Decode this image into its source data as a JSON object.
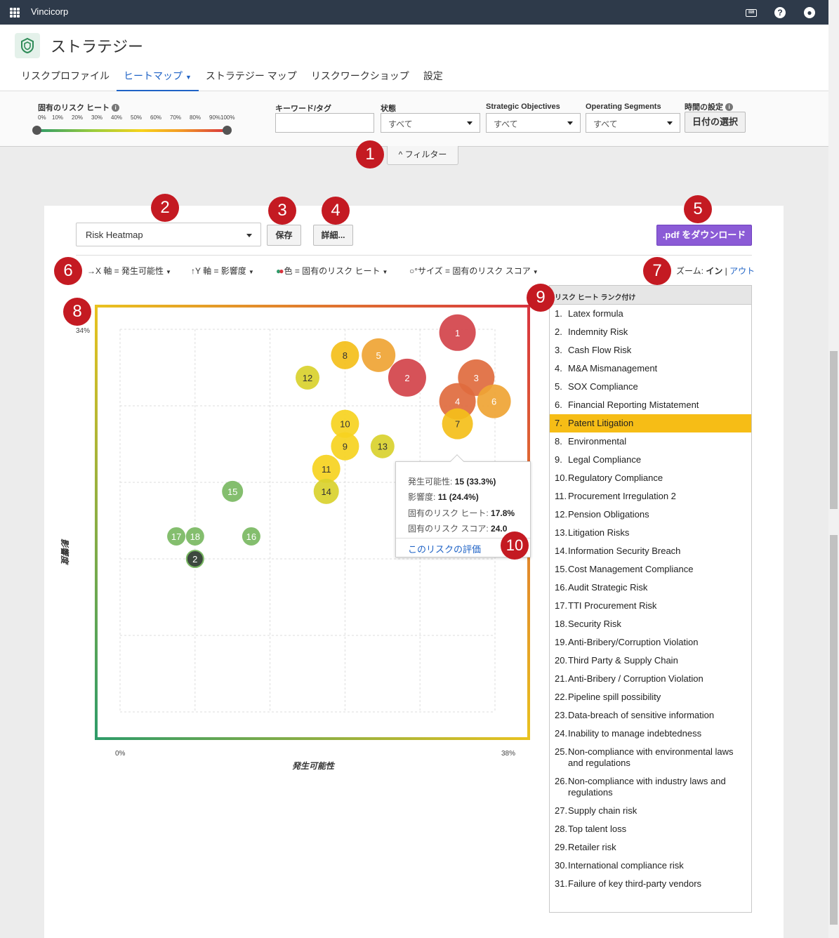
{
  "topbar": {
    "brand": "Vincicorp"
  },
  "header": {
    "title": "ストラテジー",
    "tabs": [
      {
        "label": "リスクプロファイル"
      },
      {
        "label": "ヒートマップ"
      },
      {
        "label": "ストラテジー マップ"
      },
      {
        "label": "リスクワークショップ"
      },
      {
        "label": "設定"
      }
    ]
  },
  "filters": {
    "inherent_heat_label": "固有のリスク ヒート",
    "ticks": [
      "0%",
      "10%",
      "20%",
      "30%",
      "40%",
      "50%",
      "60%",
      "70%",
      "80%",
      "90%",
      "100%"
    ],
    "keyword_label": "キーワード/タグ",
    "status_label": "状態",
    "status_value": "すべて",
    "strategic_label": "Strategic Objectives",
    "strategic_value": "すべて",
    "segments_label": "Operating Segments",
    "segments_value": "すべて",
    "time_label": "時間の設定",
    "date_button": "日付の選択",
    "toggle_label": "^ フィルター"
  },
  "toolbar": {
    "heatmap_select": "Risk Heatmap",
    "save": "保存",
    "details": "詳細...",
    "pdf": ".pdf をダウンロード",
    "x_axis": "X 軸 = 発生可能性",
    "y_axis": "Y 軸 = 影響度",
    "color": "色 = 固有のリスク ヒート",
    "size": "サイズ = 固有のリスク スコア",
    "zoom_label": "ズーム:",
    "zoom_in": "イン",
    "zoom_sep": " | ",
    "zoom_out": "アウト"
  },
  "badges": [
    "1",
    "2",
    "3",
    "4",
    "5",
    "6",
    "7",
    "8",
    "9",
    "10"
  ],
  "chart_data": {
    "type": "scatter",
    "xlabel": "発生可能性",
    "ylabel": "影響度",
    "x_min_label": "0%",
    "x_max_label": "38%",
    "y_max_label": "34%",
    "xlim": [
      0,
      38
    ],
    "ylim": [
      0,
      34
    ],
    "grid": true,
    "points": [
      {
        "label": "1",
        "x": 34.2,
        "y": 33.7,
        "r": 26,
        "color": "#d3434a"
      },
      {
        "label": "2",
        "x": 29.1,
        "y": 29.7,
        "r": 27,
        "color": "#d3434a"
      },
      {
        "label": "3",
        "x": 36.1,
        "y": 29.7,
        "r": 26,
        "color": "#e06b3e"
      },
      {
        "label": "4",
        "x": 34.2,
        "y": 27.6,
        "r": 26,
        "color": "#e06b3e"
      },
      {
        "label": "5",
        "x": 26.2,
        "y": 31.7,
        "r": 24,
        "color": "#efa434"
      },
      {
        "label": "6",
        "x": 37.9,
        "y": 27.6,
        "r": 24,
        "color": "#efa434"
      },
      {
        "label": "7",
        "x": 34.2,
        "y": 25.6,
        "r": 22,
        "color": "#f4bf1a"
      },
      {
        "label": "8",
        "x": 22.8,
        "y": 31.7,
        "r": 20,
        "color": "#f4bf1a"
      },
      {
        "label": "9",
        "x": 22.8,
        "y": 23.6,
        "r": 20,
        "color": "#f6d31f"
      },
      {
        "label": "10",
        "x": 22.8,
        "y": 25.6,
        "r": 20,
        "color": "#f6d31f"
      },
      {
        "label": "11",
        "x": 20.9,
        "y": 21.6,
        "r": 20,
        "color": "#f6d31f"
      },
      {
        "label": "12",
        "x": 19.0,
        "y": 29.7,
        "r": 17,
        "color": "#d9d12e"
      },
      {
        "label": "13",
        "x": 26.6,
        "y": 23.6,
        "r": 17,
        "color": "#d9d12e"
      },
      {
        "label": "14",
        "x": 20.9,
        "y": 19.6,
        "r": 18,
        "color": "#d9d12e"
      },
      {
        "label": "15",
        "x": 11.4,
        "y": 19.6,
        "r": 15,
        "color": "#79b862"
      },
      {
        "label": "16",
        "x": 13.3,
        "y": 15.6,
        "r": 13,
        "color": "#79b862"
      },
      {
        "label": "17",
        "x": 5.7,
        "y": 15.6,
        "r": 13,
        "color": "#79b862"
      },
      {
        "label": "18",
        "x": 7.6,
        "y": 15.6,
        "r": 13,
        "color": "#79b862"
      },
      {
        "label": "2",
        "x": 7.6,
        "y": 13.6,
        "r": 12,
        "color": "#2d3a2f"
      }
    ]
  },
  "tooltip": {
    "likelihood_label": "発生可能性:",
    "likelihood_value": "15 (33.3%)",
    "impact_label": "影響度:",
    "impact_value": "11 (24.4%)",
    "heat_label": "固有のリスク ヒート:",
    "heat_value": "17.8%",
    "score_label": "固有のリスク スコア:",
    "score_value": "24.0",
    "link": "このリスクの評価"
  },
  "ranking": {
    "header": "リスク ヒート ランク付け",
    "items": [
      "Latex formula",
      "Indemnity Risk",
      "Cash Flow Risk",
      "M&A Mismanagement",
      "SOX Compliance",
      "Financial Reporting Mistatement",
      "Patent Litigation",
      "Environmental",
      "Legal Compliance",
      "Regulatory Compliance",
      "Procurement Irregulation 2",
      "Pension Obligations",
      "Litigation Risks",
      "Information Security Breach",
      "Cost Management Compliance",
      "Audit Strategic Risk",
      "TTI Procurement Risk",
      "Security Risk",
      "Anti-Bribery/Corruption Violation",
      "Third Party & Supply Chain",
      "Anti-Bribery / Corruption Violation",
      "Pipeline spill possibility",
      "Data-breach of sensitive information",
      "Inability to manage indebtedness",
      "Non-compliance with environmental laws and regulations",
      "Non-compliance with industry laws and regulations",
      "Supply chain risk",
      "Top talent loss",
      "Retailer risk",
      "International compliance risk",
      "Failure of key third-party vendors"
    ],
    "highlighted_index": 6
  }
}
